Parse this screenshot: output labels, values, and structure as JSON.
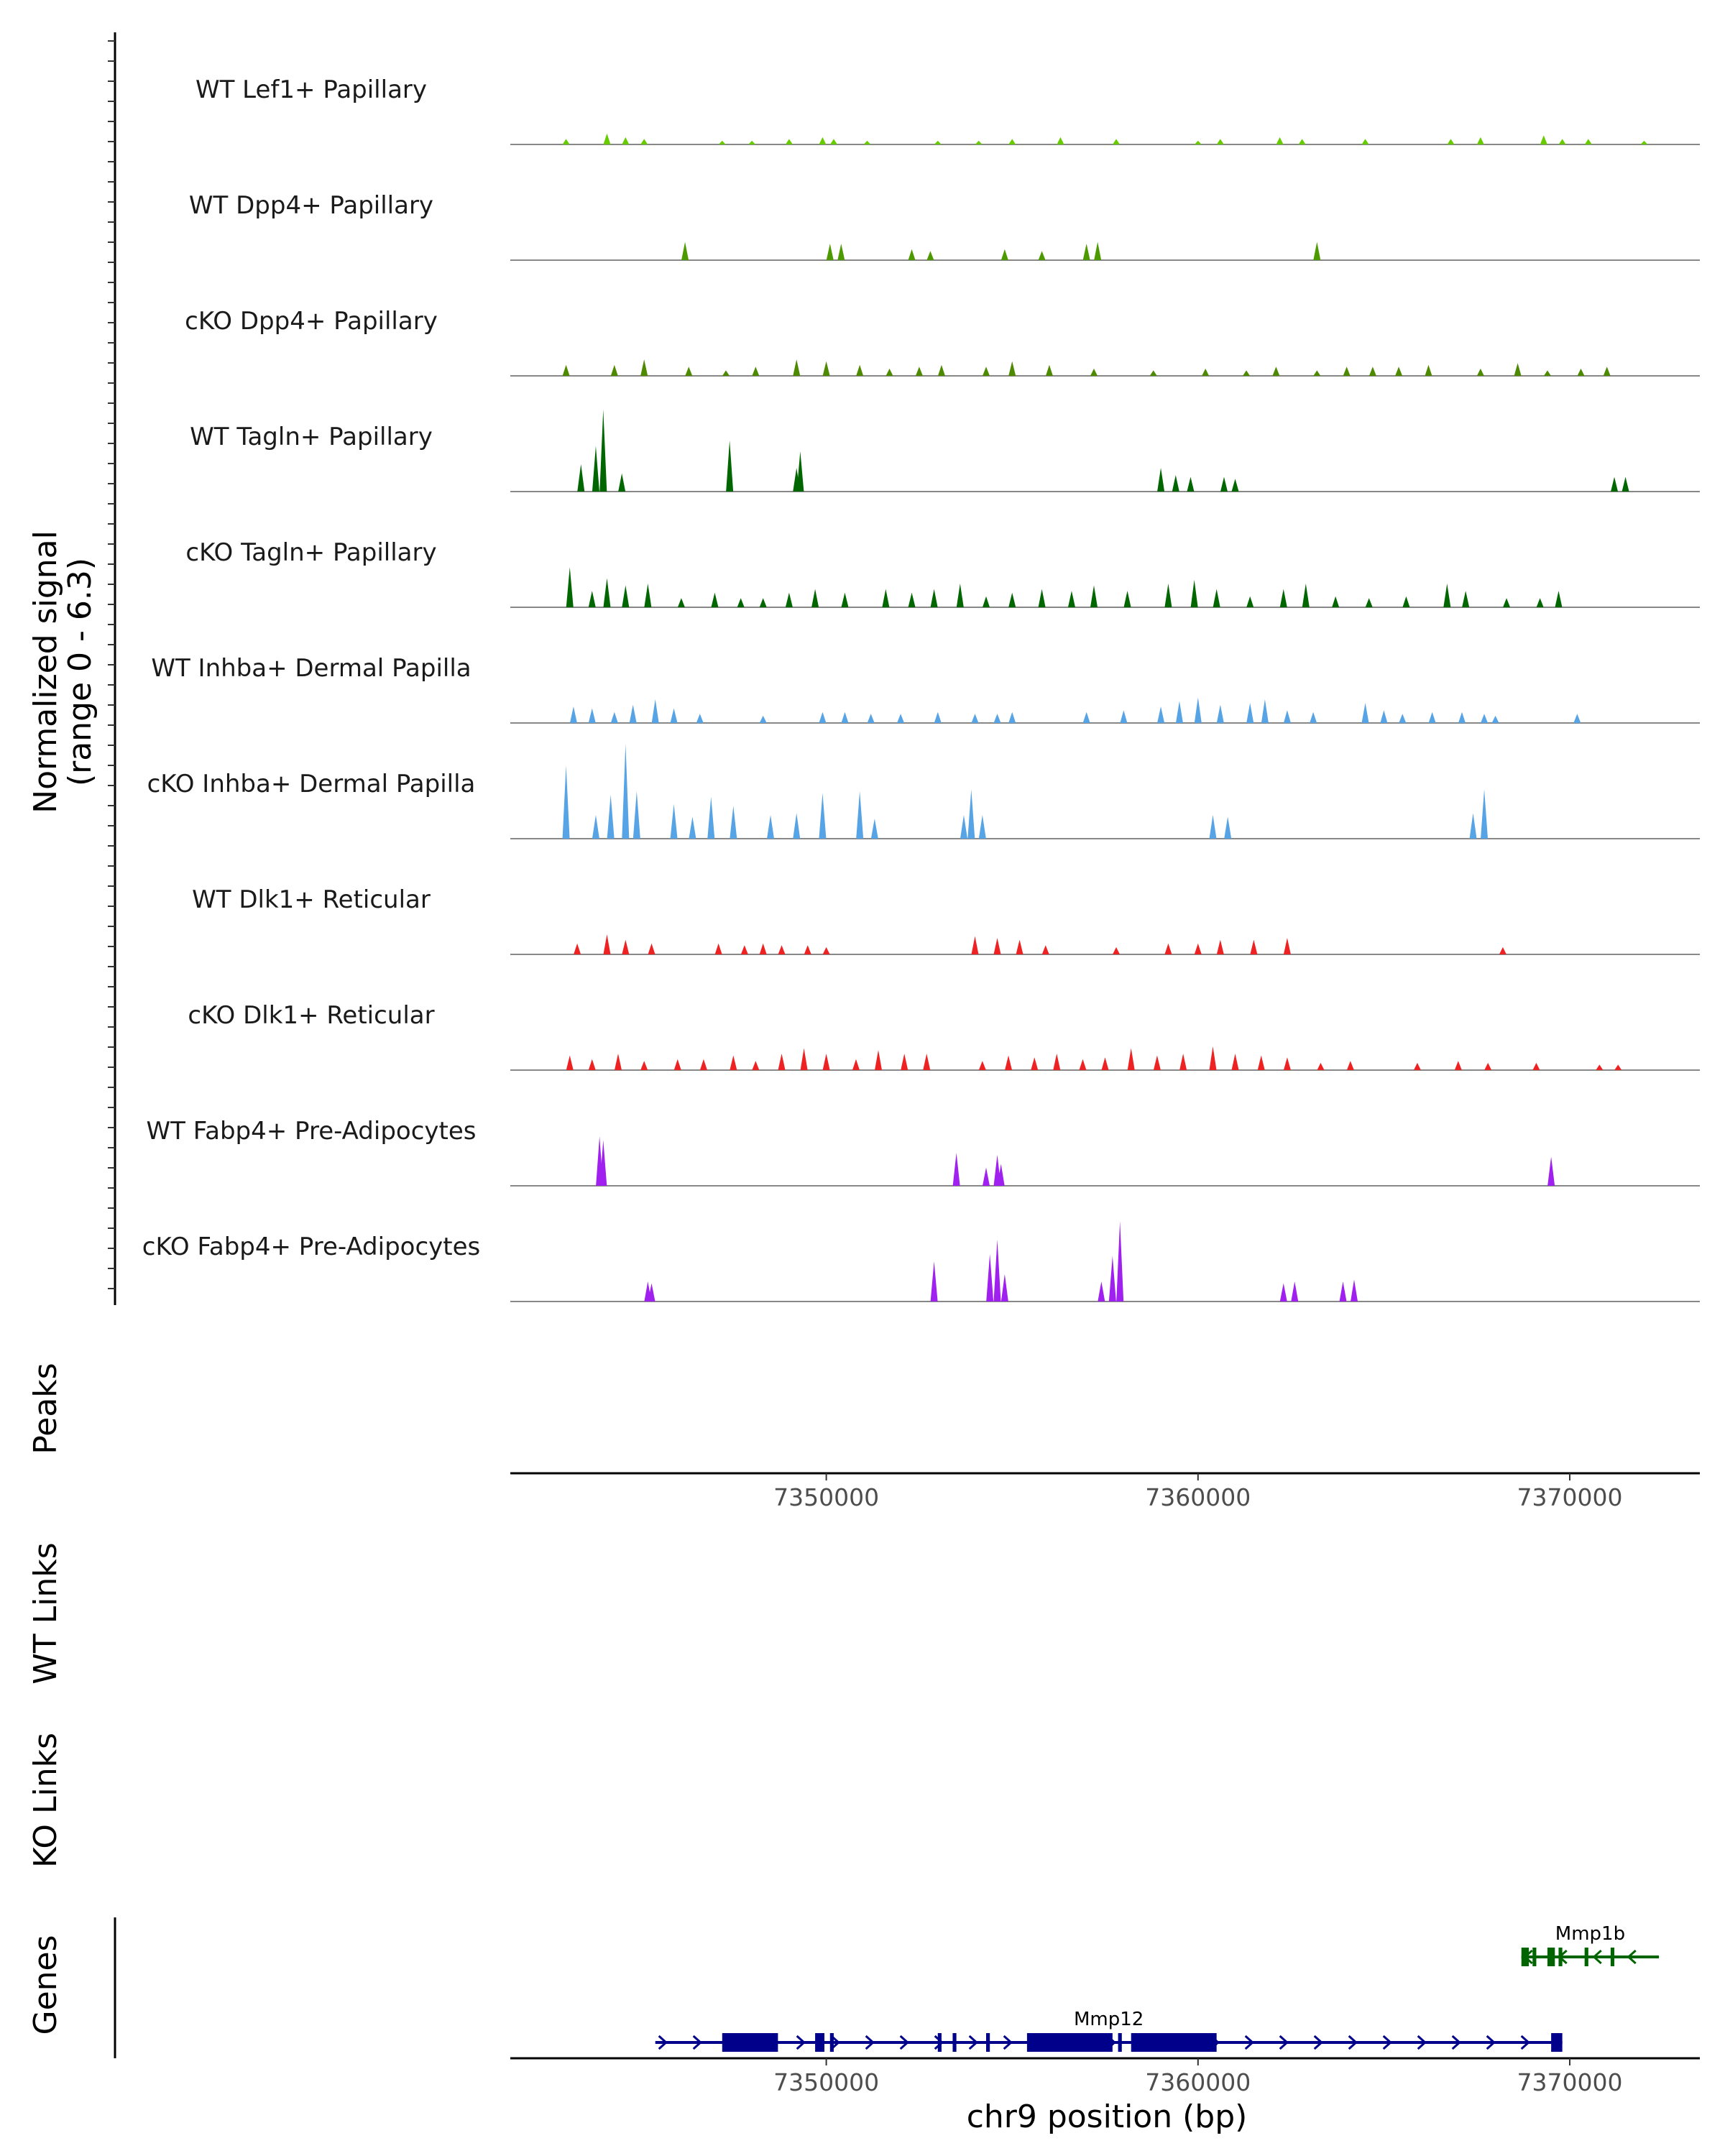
{
  "chart_data": {
    "type": "coverage",
    "chromosome": "chr9",
    "xlim": [
      7341500,
      7373500
    ],
    "xlabel": "chr9 position (bp)",
    "x_ticks": [
      7350000,
      7360000,
      7370000
    ],
    "x_tick_labels": [
      "7350000",
      "7360000",
      "7370000"
    ],
    "signal_label": "Normalized signal",
    "signal_range_label": "(range 0 - 6.3)",
    "ylim": [
      0,
      6.3
    ],
    "panel_labels": {
      "peaks": "Peaks",
      "wt_links": "WT Links",
      "ko_links": "KO Links",
      "genes": "Genes"
    },
    "tracks": [
      {
        "name": "WT Lef1+ Papillary",
        "color": "#66cc00",
        "peaks": [
          [
            7343000,
            0.3
          ],
          [
            7344100,
            0.6
          ],
          [
            7344600,
            0.4
          ],
          [
            7345100,
            0.3
          ],
          [
            7347200,
            0.2
          ],
          [
            7348000,
            0.2
          ],
          [
            7349000,
            0.3
          ],
          [
            7349900,
            0.4
          ],
          [
            7350200,
            0.3
          ],
          [
            7351100,
            0.2
          ],
          [
            7353000,
            0.2
          ],
          [
            7354100,
            0.2
          ],
          [
            7355000,
            0.3
          ],
          [
            7356300,
            0.4
          ],
          [
            7357800,
            0.3
          ],
          [
            7360000,
            0.2
          ],
          [
            7360600,
            0.3
          ],
          [
            7362200,
            0.4
          ],
          [
            7362800,
            0.3
          ],
          [
            7364500,
            0.3
          ],
          [
            7366800,
            0.3
          ],
          [
            7367600,
            0.4
          ],
          [
            7369300,
            0.5
          ],
          [
            7369800,
            0.3
          ],
          [
            7370500,
            0.3
          ],
          [
            7372000,
            0.2
          ]
        ]
      },
      {
        "name": "WT Dpp4+ Papillary",
        "color": "#4d9900",
        "peaks": [
          [
            7346200,
            1.0
          ],
          [
            7350100,
            0.9
          ],
          [
            7350400,
            0.9
          ],
          [
            7352300,
            0.6
          ],
          [
            7352800,
            0.5
          ],
          [
            7354800,
            0.6
          ],
          [
            7355800,
            0.5
          ],
          [
            7357000,
            0.9
          ],
          [
            7357300,
            1.0
          ],
          [
            7363200,
            1.0
          ]
        ]
      },
      {
        "name": "cKO Dpp4+ Papillary",
        "color": "#4d8a00",
        "peaks": [
          [
            7343000,
            0.6
          ],
          [
            7344300,
            0.6
          ],
          [
            7345100,
            0.9
          ],
          [
            7346300,
            0.5
          ],
          [
            7347300,
            0.3
          ],
          [
            7348100,
            0.5
          ],
          [
            7349200,
            0.9
          ],
          [
            7350000,
            0.8
          ],
          [
            7350900,
            0.6
          ],
          [
            7351700,
            0.4
          ],
          [
            7352500,
            0.5
          ],
          [
            7353100,
            0.6
          ],
          [
            7354300,
            0.5
          ],
          [
            7355000,
            0.8
          ],
          [
            7356000,
            0.6
          ],
          [
            7357200,
            0.4
          ],
          [
            7358800,
            0.3
          ],
          [
            7360200,
            0.4
          ],
          [
            7361300,
            0.3
          ],
          [
            7362100,
            0.5
          ],
          [
            7363200,
            0.3
          ],
          [
            7364000,
            0.5
          ],
          [
            7364700,
            0.5
          ],
          [
            7365400,
            0.5
          ],
          [
            7366200,
            0.6
          ],
          [
            7367600,
            0.4
          ],
          [
            7368600,
            0.7
          ],
          [
            7369400,
            0.3
          ],
          [
            7370300,
            0.4
          ],
          [
            7371000,
            0.5
          ]
        ]
      },
      {
        "name": "WT Tagln+ Papillary",
        "color": "#006600",
        "peaks": [
          [
            7343400,
            1.5
          ],
          [
            7343800,
            2.5
          ],
          [
            7344000,
            4.5
          ],
          [
            7344500,
            1.0
          ],
          [
            7347400,
            2.8
          ],
          [
            7349200,
            1.3
          ],
          [
            7349300,
            2.2
          ],
          [
            7359000,
            1.3
          ],
          [
            7359400,
            0.9
          ],
          [
            7359800,
            0.8
          ],
          [
            7360700,
            0.8
          ],
          [
            7361000,
            0.7
          ],
          [
            7371200,
            0.8
          ],
          [
            7371500,
            0.8
          ]
        ]
      },
      {
        "name": "cKO Tagln+ Papillary",
        "color": "#006600",
        "peaks": [
          [
            7343100,
            2.2
          ],
          [
            7343700,
            0.9
          ],
          [
            7344100,
            1.6
          ],
          [
            7344600,
            1.2
          ],
          [
            7345200,
            1.3
          ],
          [
            7346100,
            0.5
          ],
          [
            7347000,
            0.8
          ],
          [
            7347700,
            0.5
          ],
          [
            7348300,
            0.5
          ],
          [
            7349000,
            0.8
          ],
          [
            7349700,
            1.0
          ],
          [
            7350500,
            0.8
          ],
          [
            7351600,
            1.0
          ],
          [
            7352300,
            0.8
          ],
          [
            7352900,
            1.0
          ],
          [
            7353600,
            1.3
          ],
          [
            7354300,
            0.6
          ],
          [
            7355000,
            0.8
          ],
          [
            7355800,
            1.0
          ],
          [
            7356600,
            0.9
          ],
          [
            7357200,
            1.2
          ],
          [
            7358100,
            0.9
          ],
          [
            7359200,
            1.3
          ],
          [
            7359900,
            1.5
          ],
          [
            7360500,
            1.0
          ],
          [
            7361400,
            0.6
          ],
          [
            7362300,
            1.0
          ],
          [
            7362900,
            1.3
          ],
          [
            7363700,
            0.6
          ],
          [
            7364600,
            0.5
          ],
          [
            7365600,
            0.6
          ],
          [
            7366700,
            1.3
          ],
          [
            7367200,
            0.9
          ],
          [
            7368300,
            0.5
          ],
          [
            7369200,
            0.5
          ],
          [
            7369700,
            0.9
          ]
        ]
      },
      {
        "name": "WT Inhba+ Dermal Papilla",
        "color": "#56a3e6",
        "peaks": [
          [
            7343200,
            0.9
          ],
          [
            7343700,
            0.8
          ],
          [
            7344300,
            0.6
          ],
          [
            7344800,
            1.0
          ],
          [
            7345400,
            1.3
          ],
          [
            7345900,
            0.8
          ],
          [
            7346600,
            0.5
          ],
          [
            7348300,
            0.4
          ],
          [
            7349900,
            0.6
          ],
          [
            7350500,
            0.6
          ],
          [
            7351200,
            0.5
          ],
          [
            7352000,
            0.5
          ],
          [
            7353000,
            0.6
          ],
          [
            7354000,
            0.5
          ],
          [
            7354600,
            0.5
          ],
          [
            7355000,
            0.6
          ],
          [
            7357000,
            0.6
          ],
          [
            7358000,
            0.7
          ],
          [
            7359000,
            0.9
          ],
          [
            7359500,
            1.2
          ],
          [
            7360000,
            1.4
          ],
          [
            7360600,
            1.0
          ],
          [
            7361400,
            1.1
          ],
          [
            7361800,
            1.3
          ],
          [
            7362400,
            0.7
          ],
          [
            7363100,
            0.6
          ],
          [
            7364500,
            1.1
          ],
          [
            7365000,
            0.7
          ],
          [
            7365500,
            0.5
          ],
          [
            7366300,
            0.6
          ],
          [
            7367100,
            0.6
          ],
          [
            7367700,
            0.5
          ],
          [
            7368000,
            0.4
          ],
          [
            7370200,
            0.5
          ]
        ]
      },
      {
        "name": "cKO Inhba+ Dermal Papilla",
        "color": "#56a3e6",
        "peaks": [
          [
            7343000,
            4.0
          ],
          [
            7343800,
            1.3
          ],
          [
            7344200,
            2.4
          ],
          [
            7344900,
            2.6
          ],
          [
            7345900,
            1.9
          ],
          [
            7346400,
            1.2
          ],
          [
            7346900,
            2.3
          ],
          [
            7347500,
            1.8
          ],
          [
            7348500,
            1.3
          ],
          [
            7349200,
            1.4
          ],
          [
            7349900,
            2.5
          ],
          [
            7350900,
            2.6
          ],
          [
            7351300,
            1.1
          ],
          [
            7353700,
            1.3
          ],
          [
            7353900,
            2.7
          ],
          [
            7354200,
            1.3
          ],
          [
            7360400,
            1.3
          ],
          [
            7360800,
            1.2
          ],
          [
            7367400,
            1.4
          ],
          [
            7367700,
            2.7
          ],
          [
            7344600,
            5.2
          ]
        ]
      },
      {
        "name": "WT Dlk1+ Reticular",
        "color": "#ee2222",
        "peaks": [
          [
            7343300,
            0.6
          ],
          [
            7344100,
            1.1
          ],
          [
            7344600,
            0.8
          ],
          [
            7345300,
            0.6
          ],
          [
            7347100,
            0.6
          ],
          [
            7347800,
            0.5
          ],
          [
            7348300,
            0.6
          ],
          [
            7348800,
            0.5
          ],
          [
            7349500,
            0.5
          ],
          [
            7350000,
            0.4
          ],
          [
            7354000,
            1.0
          ],
          [
            7354600,
            0.9
          ],
          [
            7355200,
            0.8
          ],
          [
            7355900,
            0.5
          ],
          [
            7357800,
            0.4
          ],
          [
            7359200,
            0.6
          ],
          [
            7360000,
            0.6
          ],
          [
            7360600,
            0.8
          ],
          [
            7361500,
            0.8
          ],
          [
            7362400,
            0.9
          ],
          [
            7368200,
            0.4
          ]
        ]
      },
      {
        "name": "cKO Dlk1+ Reticular",
        "color": "#ee2222",
        "peaks": [
          [
            7343100,
            0.8
          ],
          [
            7343700,
            0.6
          ],
          [
            7344400,
            0.9
          ],
          [
            7345100,
            0.5
          ],
          [
            7346000,
            0.6
          ],
          [
            7346700,
            0.6
          ],
          [
            7347500,
            0.8
          ],
          [
            7348100,
            0.5
          ],
          [
            7348800,
            0.9
          ],
          [
            7349400,
            1.2
          ],
          [
            7350000,
            0.9
          ],
          [
            7350800,
            0.6
          ],
          [
            7351400,
            1.1
          ],
          [
            7352100,
            0.9
          ],
          [
            7352700,
            0.9
          ],
          [
            7354200,
            0.5
          ],
          [
            7354900,
            0.8
          ],
          [
            7355600,
            0.7
          ],
          [
            7356200,
            0.9
          ],
          [
            7356900,
            0.6
          ],
          [
            7357500,
            0.7
          ],
          [
            7358200,
            1.2
          ],
          [
            7358900,
            0.8
          ],
          [
            7359600,
            0.9
          ],
          [
            7360400,
            1.3
          ],
          [
            7361000,
            0.9
          ],
          [
            7361700,
            0.8
          ],
          [
            7362400,
            0.7
          ],
          [
            7363300,
            0.4
          ],
          [
            7364100,
            0.5
          ],
          [
            7365900,
            0.4
          ],
          [
            7367000,
            0.5
          ],
          [
            7367800,
            0.4
          ],
          [
            7369100,
            0.4
          ],
          [
            7370800,
            0.3
          ],
          [
            7371300,
            0.3
          ]
        ]
      },
      {
        "name": "WT Fabp4+ Pre-Adipocytes",
        "color": "#a020f0",
        "peaks": [
          [
            7343900,
            2.7
          ],
          [
            7344000,
            2.5
          ],
          [
            7353500,
            1.8
          ],
          [
            7354300,
            1.0
          ],
          [
            7354600,
            1.7
          ],
          [
            7354700,
            1.2
          ],
          [
            7369500,
            1.6
          ]
        ]
      },
      {
        "name": "cKO Fabp4+ Pre-Adipocytes",
        "color": "#a020f0",
        "peaks": [
          [
            7345200,
            1.1
          ],
          [
            7345300,
            1.0
          ],
          [
            7352900,
            2.2
          ],
          [
            7354400,
            2.6
          ],
          [
            7354600,
            3.4
          ],
          [
            7354800,
            1.5
          ],
          [
            7357400,
            1.1
          ],
          [
            7357700,
            2.5
          ],
          [
            7357900,
            4.4
          ],
          [
            7362300,
            1.0
          ],
          [
            7362600,
            1.1
          ],
          [
            7363900,
            1.1
          ],
          [
            7364200,
            1.2
          ]
        ]
      }
    ],
    "genes": [
      {
        "name": "Mmp12",
        "strand": "+",
        "color": "#00008b",
        "start": 7345400,
        "end": 7369800,
        "exons": [
          [
            7347200,
            7348700
          ],
          [
            7349700,
            7349950
          ],
          [
            7350100,
            7350200
          ],
          [
            7353000,
            7353100
          ],
          [
            7353400,
            7353500
          ],
          [
            7354300,
            7354400
          ],
          [
            7355400,
            7357700
          ],
          [
            7357850,
            7357950
          ],
          [
            7358200,
            7360500
          ],
          [
            7369500,
            7369800
          ]
        ]
      },
      {
        "name": "Mmp1b",
        "strand": "-",
        "color": "#006400",
        "start": 7368700,
        "end": 7372400,
        "exons": [
          [
            7368700,
            7368900
          ],
          [
            7369000,
            7369100
          ],
          [
            7369400,
            7369600
          ],
          [
            7369700,
            7369800
          ],
          [
            7370400,
            7370500
          ],
          [
            7371100,
            7371200
          ]
        ]
      }
    ]
  }
}
